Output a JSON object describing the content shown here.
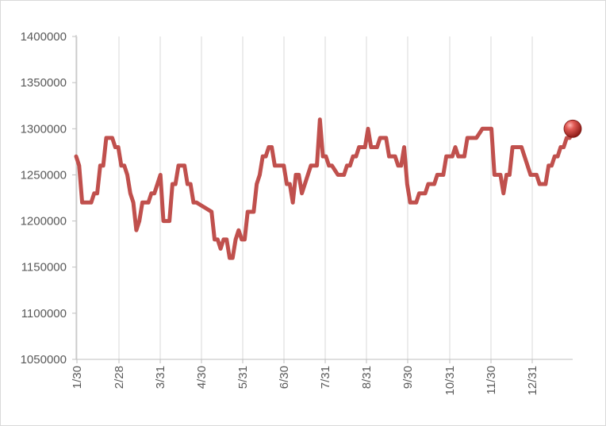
{
  "chart_data": {
    "type": "line",
    "title": "",
    "xlabel": "",
    "ylabel": "",
    "ylim": [
      1050000,
      1400000
    ],
    "y_ticks": [
      "1050000",
      "1100000",
      "1150000",
      "1200000",
      "1250000",
      "1300000",
      "1350000",
      "1400000"
    ],
    "x_tick_labels": [
      "1/30",
      "2/28",
      "3/31",
      "4/30",
      "5/31",
      "6/30",
      "7/31",
      "8/31",
      "9/30",
      "10/31",
      "11/30",
      "12/31"
    ],
    "grid": "vertical",
    "legend": "none",
    "colors": {
      "line": "#c0504d",
      "marker": "#c0504d",
      "grid": "#d9d9d9",
      "axis": "#bfbfbf"
    },
    "series": [
      {
        "values": [
          1270000,
          1260000,
          1220000,
          1220000,
          1220000,
          1220000,
          1230000,
          1230000,
          1260000,
          1260000,
          1290000,
          1290000,
          1290000,
          1280000,
          1280000,
          1260000,
          1260000,
          1250000,
          1230000,
          1220000,
          1190000,
          1200000,
          1220000,
          1220000,
          1220000,
          1230000,
          1230000,
          1240000,
          1250000,
          1200000,
          1200000,
          1200000,
          1240000,
          1240000,
          1260000,
          1260000,
          1260000,
          1240000,
          1240000,
          1220000,
          1220000,
          1218000,
          1216000,
          1214000,
          1212000,
          1210000,
          1180000,
          1180000,
          1170000,
          1180000,
          1180000,
          1160000,
          1160000,
          1180000,
          1190000,
          1180000,
          1180000,
          1210000,
          1210000,
          1210000,
          1240000,
          1250000,
          1270000,
          1270000,
          1280000,
          1280000,
          1260000,
          1260000,
          1260000,
          1260000,
          1240000,
          1240000,
          1220000,
          1250000,
          1250000,
          1230000,
          1240000,
          1250000,
          1260000,
          1260000,
          1260000,
          1310000,
          1270000,
          1270000,
          1260000,
          1260000,
          1255000,
          1250000,
          1250000,
          1250000,
          1260000,
          1260000,
          1270000,
          1270000,
          1280000,
          1280000,
          1280000,
          1300000,
          1280000,
          1280000,
          1280000,
          1290000,
          1290000,
          1290000,
          1270000,
          1270000,
          1270000,
          1260000,
          1260000,
          1280000,
          1240000,
          1220000,
          1220000,
          1220000,
          1230000,
          1230000,
          1230000,
          1240000,
          1240000,
          1240000,
          1250000,
          1250000,
          1250000,
          1270000,
          1270000,
          1270000,
          1280000,
          1270000,
          1270000,
          1270000,
          1290000,
          1290000,
          1290000,
          1290000,
          1295000,
          1300000,
          1300000,
          1300000,
          1300000,
          1250000,
          1250000,
          1250000,
          1230000,
          1250000,
          1250000,
          1280000,
          1280000,
          1280000,
          1280000,
          1270000,
          1260000,
          1250000,
          1250000,
          1250000,
          1240000,
          1240000,
          1240000,
          1260000,
          1260000,
          1270000,
          1270000,
          1280000,
          1280000,
          1290000,
          1290000,
          1300000
        ]
      }
    ]
  }
}
